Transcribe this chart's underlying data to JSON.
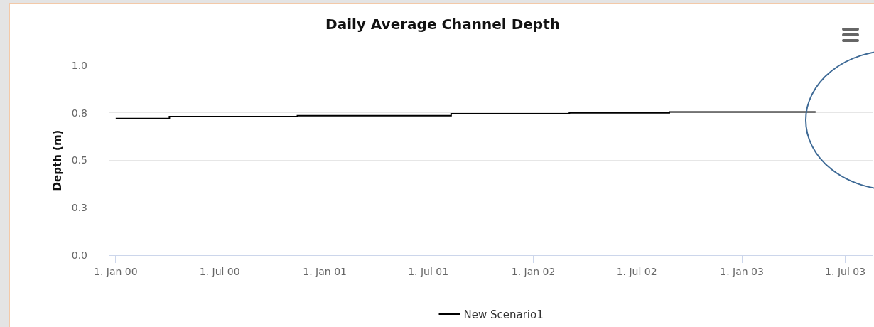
{
  "chart_data": {
    "type": "step",
    "title": "Daily Average Channel Depth",
    "ylabel": "Depth (m)",
    "x": [
      "2000-01-01",
      "2000-04-04",
      "2000-11-14",
      "2001-08-10",
      "2002-03-05",
      "2002-08-27",
      "2003-05-10"
    ],
    "series": [
      {
        "name": "New Scenario1",
        "color": "#000000",
        "values": [
          0.72,
          0.73,
          0.735,
          0.745,
          0.75,
          0.755,
          0.755
        ]
      }
    ],
    "xlim": [
      "1999-12-21",
      "2003-08-19"
    ],
    "xticks": [
      {
        "value": "2000-01-01",
        "label": "1. Jan 00"
      },
      {
        "value": "2000-07-01",
        "label": "1. Jul 00"
      },
      {
        "value": "2001-01-01",
        "label": "1. Jan 01"
      },
      {
        "value": "2001-07-01",
        "label": "1. Jul 01"
      },
      {
        "value": "2002-01-01",
        "label": "1. Jan 02"
      },
      {
        "value": "2002-07-01",
        "label": "1. Jul 02"
      },
      {
        "value": "2003-01-01",
        "label": "1. Jan 03"
      },
      {
        "value": "2003-07-01",
        "label": "1. Jul 03"
      }
    ],
    "ylim": [
      0,
      1
    ],
    "yticks": [
      {
        "value": 0,
        "label": "0.0"
      },
      {
        "value": 0.25,
        "label": "0.3"
      },
      {
        "value": 0.5,
        "label": "0.5"
      },
      {
        "value": 0.75,
        "label": "0.8"
      },
      {
        "value": 1,
        "label": "1.0"
      }
    ],
    "grid": "y",
    "legend": "bottom",
    "marker": "none",
    "line_style": "solid"
  }
}
